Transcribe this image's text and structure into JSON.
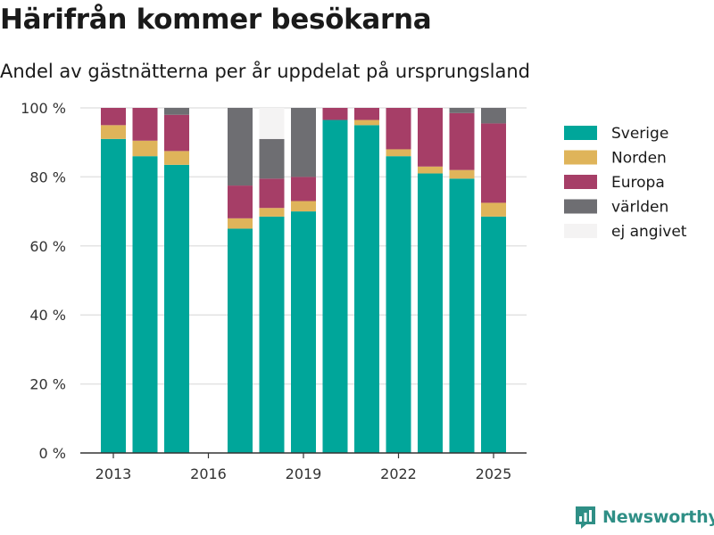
{
  "title": "Härifrån kommer besökarna",
  "subtitle": "Andel av gästnätterna per år uppdelat på ursprungsland",
  "logo_text": "Newsworthy",
  "chart_data": {
    "type": "bar",
    "stacked": true,
    "x": [
      2013,
      2014,
      2015,
      2016,
      2017,
      2018,
      2019,
      2020,
      2021,
      2022,
      2023,
      2024,
      2025
    ],
    "x_ticks": [
      2013,
      2016,
      2019,
      2022,
      2025
    ],
    "y_ticks": [
      0,
      20,
      40,
      60,
      80,
      100
    ],
    "y_tick_suffix": " %",
    "ylim": [
      0,
      100
    ],
    "grid": true,
    "legend_position": "right",
    "series": [
      {
        "name": "Sverige",
        "color": "#00a69a",
        "values": [
          91,
          86,
          83.5,
          null,
          65,
          68.5,
          70,
          96.5,
          95,
          86,
          81,
          79.5,
          68.5
        ]
      },
      {
        "name": "Norden",
        "color": "#dfb45a",
        "values": [
          4,
          4.5,
          4,
          null,
          3,
          2.5,
          3,
          0,
          1.5,
          2,
          2,
          2.5,
          4
        ]
      },
      {
        "name": "Europa",
        "color": "#a63e67",
        "values": [
          5,
          9.5,
          10.5,
          null,
          9.5,
          8.5,
          7,
          3.5,
          3.5,
          12,
          17,
          16.5,
          23
        ]
      },
      {
        "name": "världen",
        "color": "#6e6e72",
        "values": [
          0,
          0,
          2,
          null,
          22.5,
          11.5,
          20,
          0,
          0,
          0,
          0,
          1.5,
          4.5
        ]
      },
      {
        "name": "ej angivet",
        "color": "#f4f3f3",
        "values": [
          0,
          0,
          0,
          null,
          0,
          9,
          0,
          0,
          0,
          0,
          0,
          0,
          0
        ]
      }
    ]
  }
}
